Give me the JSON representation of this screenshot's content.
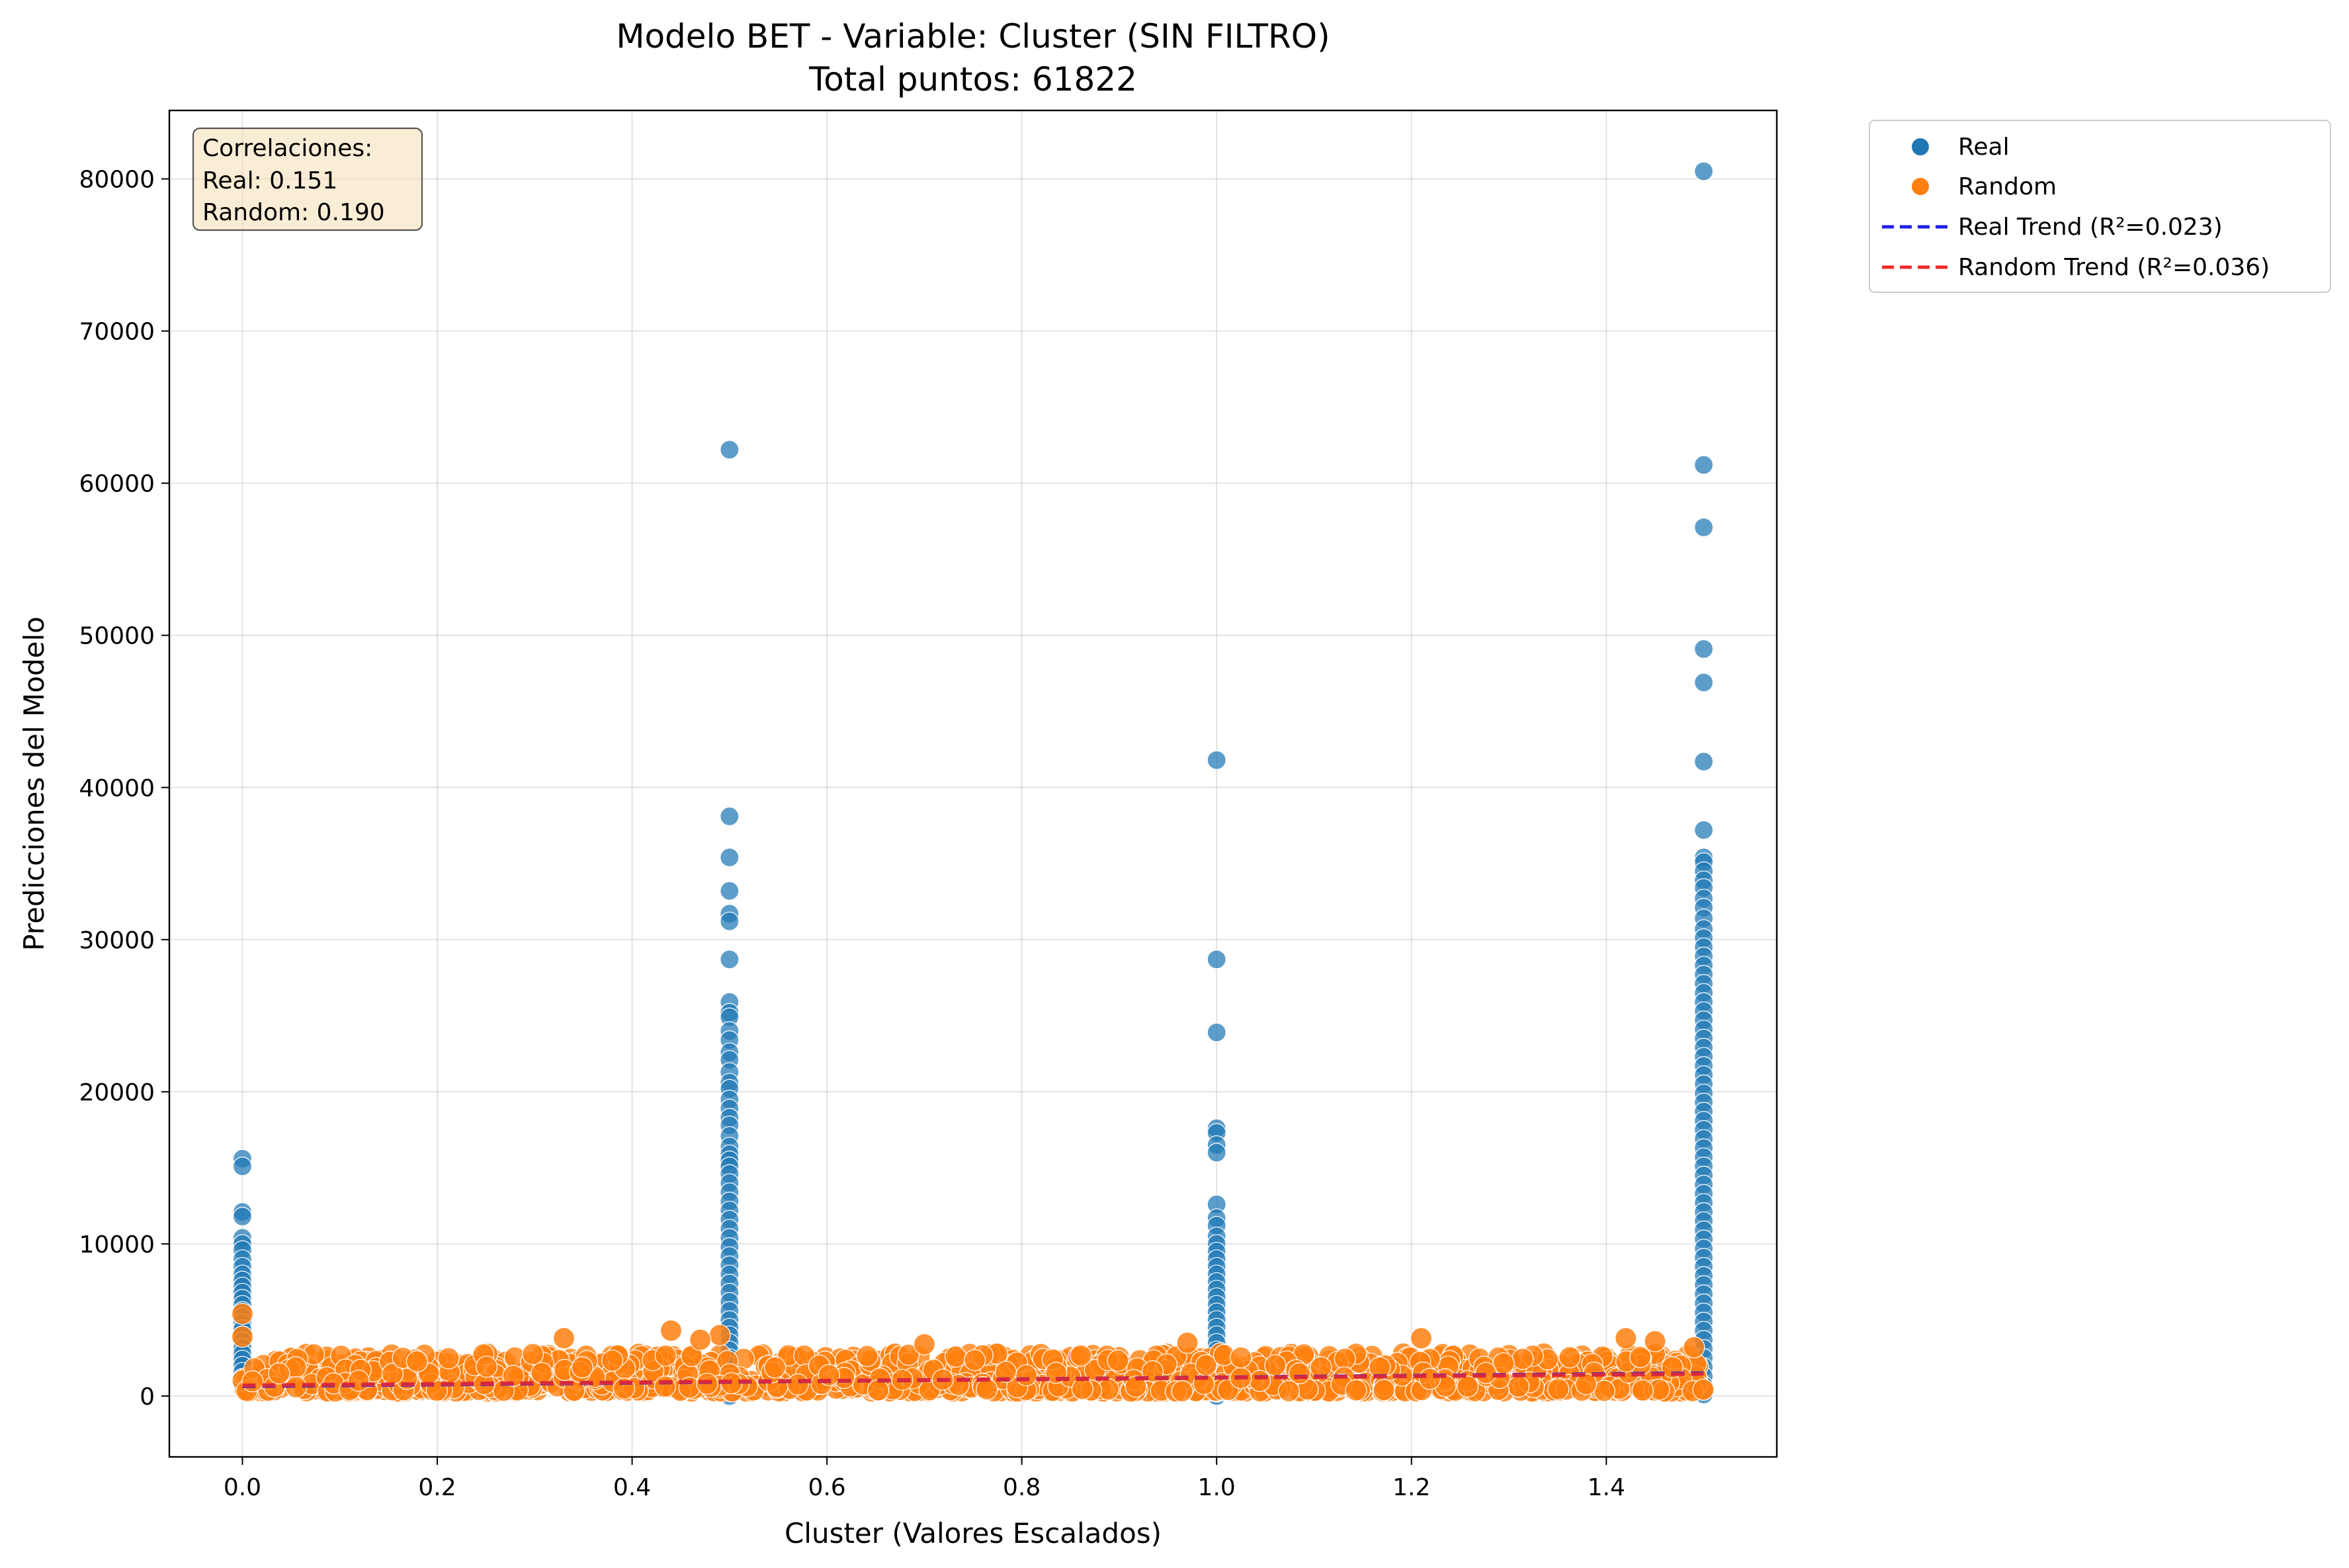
{
  "chart_data": {
    "type": "scatter",
    "title": "Modelo BET - Variable: Cluster (SIN FILTRO)",
    "subtitle": "Total puntos: 61822",
    "xlabel": "Cluster (Valores Escalados)",
    "ylabel": "Predicciones del Modelo",
    "xlim": [
      -0.075,
      1.575
    ],
    "ylim": [
      -4000,
      84500
    ],
    "xticks": [
      0.0,
      0.2,
      0.4,
      0.6,
      0.8,
      1.0,
      1.2,
      1.4
    ],
    "xtick_labels": [
      "0.0",
      "0.2",
      "0.4",
      "0.6",
      "0.8",
      "1.0",
      "1.2",
      "1.4"
    ],
    "yticks": [
      0,
      10000,
      20000,
      30000,
      40000,
      50000,
      60000,
      70000,
      80000
    ],
    "ytick_labels": [
      "0",
      "10000",
      "20000",
      "30000",
      "40000",
      "50000",
      "60000",
      "70000",
      "80000"
    ],
    "grid": true,
    "legend_position": "outside-top-right",
    "correlations_box": {
      "lines": [
        "Correlaciones:",
        "Real: 0.151",
        "Random: 0.190"
      ]
    },
    "series": [
      {
        "name": "Real",
        "color": "#1f77b4",
        "clusters": [
          {
            "x": 0.0,
            "values": [
              15600,
              15100,
              12100,
              11800,
              10400,
              10000,
              9600,
              9000,
              8500,
              8000,
              7600,
              7200,
              6800,
              6400,
              6000,
              5600,
              5200,
              4800,
              4400,
              4000,
              3600,
              3200,
              2800,
              2400,
              2000,
              1600,
              1200,
              800
            ]
          },
          {
            "x": 0.5,
            "values": [
              62200,
              38100,
              35400,
              33200,
              31700,
              31200,
              28700,
              25900,
              25200,
              24900,
              24000,
              23400,
              22600,
              22100,
              21300,
              20600,
              20200,
              19500,
              18900,
              18300,
              17800,
              17100,
              16400,
              15900,
              15500,
              15100,
              14600,
              14000,
              13400,
              12800,
              12200,
              11600,
              11000,
              10400,
              9800,
              9200,
              8600,
              8000,
              7400,
              6800,
              6200,
              5600,
              5000,
              4500,
              4000,
              3500,
              3000,
              2500,
              2000,
              1500,
              1000,
              500,
              0
            ]
          },
          {
            "x": 1.0,
            "values": [
              41800,
              28700,
              23900,
              17600,
              17300,
              16500,
              16000,
              12600,
              11700,
              11200,
              10500,
              10000,
              9500,
              9000,
              8500,
              8000,
              7500,
              7000,
              6500,
              6000,
              5500,
              5000,
              4500,
              4000,
              3500,
              3000,
              2500,
              2000,
              1500,
              1000,
              500,
              0
            ]
          },
          {
            "x": 1.5,
            "values": [
              80500,
              61200,
              57100,
              49100,
              46900,
              41700,
              37200,
              35400,
              35100,
              34500,
              33900,
              33400,
              32700,
              32100,
              31400,
              30700,
              30100,
              29500,
              28900,
              28300,
              27700,
              27100,
              26500,
              25900,
              25300,
              24700,
              24100,
              23500,
              22900,
              22300,
              21700,
              21100,
              20500,
              19900,
              19300,
              18700,
              18100,
              17500,
              16900,
              16300,
              15700,
              15100,
              14500,
              13900,
              13300,
              12700,
              12100,
              11500,
              10900,
              10300,
              9700,
              9100,
              8500,
              7900,
              7300,
              6700,
              6100,
              5500,
              4900,
              4300,
              3700,
              3100,
              2500,
              1900,
              1300,
              700,
              100
            ]
          }
        ]
      },
      {
        "name": "Random",
        "color": "#ff7f0e",
        "x_range": [
          0.0,
          1.5
        ],
        "typical_range": [
          300,
          2800
        ],
        "notable_points": [
          {
            "x": 0.0,
            "y": 5400
          },
          {
            "x": 0.0,
            "y": 3900
          },
          {
            "x": 0.33,
            "y": 3800
          },
          {
            "x": 0.44,
            "y": 4300
          },
          {
            "x": 0.49,
            "y": 4000
          },
          {
            "x": 0.47,
            "y": 3700
          },
          {
            "x": 0.7,
            "y": 3400
          },
          {
            "x": 0.97,
            "y": 3500
          },
          {
            "x": 1.21,
            "y": 3800
          },
          {
            "x": 1.42,
            "y": 3800
          },
          {
            "x": 1.45,
            "y": 3600
          },
          {
            "x": 1.49,
            "y": 3200
          }
        ]
      },
      {
        "name": "Real Trend (R²=0.023)",
        "type": "line",
        "style": "dashed",
        "color": "#1f1fe6",
        "x": [
          0.0,
          1.5
        ],
        "y": [
          650,
          1500
        ]
      },
      {
        "name": "Random Trend (R²=0.036)",
        "type": "line",
        "style": "dashed",
        "color": "#f02828",
        "x": [
          0.0,
          1.5
        ],
        "y": [
          700,
          1450
        ]
      }
    ]
  }
}
